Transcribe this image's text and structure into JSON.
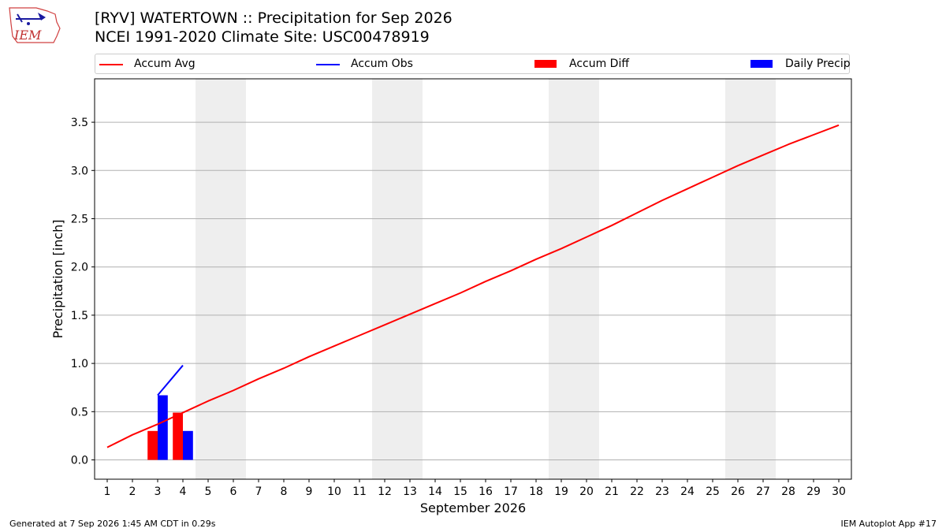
{
  "header": {
    "title_line1": "[RYV] WATERTOWN :: Precipitation for Sep 2026",
    "title_line2": "NCEI 1991-2020 Climate Site: USC00478919",
    "logo_text": "IEM"
  },
  "footer": {
    "left": "Generated at 7 Sep 2026 1:45 AM CDT in 0.29s",
    "right": "IEM Autoplot App #17"
  },
  "colors": {
    "avg": "#ff0000",
    "obs": "#0000ff",
    "diff": "#ff0000",
    "daily": "#0000ff",
    "weekend": "#eeeeee",
    "grid": "#b0b0b0"
  },
  "chart_data": {
    "type": "bar",
    "xlabel": "September 2026",
    "ylabel": "Precipitation [inch]",
    "xlim": [
      0.5,
      30.5
    ],
    "ylim": [
      -0.2,
      3.95
    ],
    "yticks": [
      0.0,
      0.5,
      1.0,
      1.5,
      2.0,
      2.5,
      3.0,
      3.5
    ],
    "ytick_labels": [
      "0.0",
      "0.5",
      "1.0",
      "1.5",
      "2.0",
      "2.5",
      "3.0",
      "3.5"
    ],
    "xticks": [
      1,
      2,
      3,
      4,
      5,
      6,
      7,
      8,
      9,
      10,
      11,
      12,
      13,
      14,
      15,
      16,
      17,
      18,
      19,
      20,
      21,
      22,
      23,
      24,
      25,
      26,
      27,
      28,
      29,
      30
    ],
    "xtick_labels": [
      "1",
      "2",
      "3",
      "4",
      "5",
      "6",
      "7",
      "8",
      "9",
      "10",
      "11",
      "12",
      "13",
      "14",
      "15",
      "16",
      "17",
      "18",
      "19",
      "20",
      "21",
      "22",
      "23",
      "24",
      "25",
      "26",
      "27",
      "28",
      "29",
      "30"
    ],
    "grid": "horizontal",
    "weekend_spans": [
      [
        4.5,
        6.5
      ],
      [
        11.5,
        13.5
      ],
      [
        18.5,
        20.5
      ],
      [
        25.5,
        27.5
      ]
    ],
    "legend": {
      "placement": "top",
      "entries": [
        {
          "label": "Accum Avg",
          "kind": "line",
          "color": "#ff0000"
        },
        {
          "label": "Accum Obs",
          "kind": "line",
          "color": "#0000ff"
        },
        {
          "label": "Accum Diff",
          "kind": "bar",
          "color": "#ff0000"
        },
        {
          "label": "Daily Precip",
          "kind": "bar",
          "color": "#0000ff"
        }
      ]
    },
    "series": [
      {
        "name": "Accum Avg",
        "type": "line",
        "color": "#ff0000",
        "x": [
          1,
          2,
          3,
          4,
          5,
          6,
          7,
          8,
          9,
          10,
          11,
          12,
          13,
          14,
          15,
          16,
          17,
          18,
          19,
          20,
          21,
          22,
          23,
          24,
          25,
          26,
          27,
          28,
          29,
          30
        ],
        "values": [
          0.13,
          0.26,
          0.37,
          0.49,
          0.61,
          0.72,
          0.84,
          0.95,
          1.07,
          1.18,
          1.29,
          1.4,
          1.51,
          1.62,
          1.73,
          1.85,
          1.96,
          2.08,
          2.19,
          2.31,
          2.43,
          2.56,
          2.69,
          2.81,
          2.93,
          3.05,
          3.16,
          3.27,
          3.37,
          3.47
        ]
      },
      {
        "name": "Accum Obs",
        "type": "line",
        "color": "#0000ff",
        "x": [
          3,
          4
        ],
        "values": [
          0.67,
          0.98
        ]
      },
      {
        "name": "Accum Diff",
        "type": "bar",
        "color": "#ff0000",
        "x": [
          3,
          4
        ],
        "values": [
          0.3,
          0.49
        ]
      },
      {
        "name": "Daily Precip",
        "type": "bar",
        "color": "#0000ff",
        "x": [
          3,
          4
        ],
        "values": [
          0.67,
          0.3
        ]
      }
    ]
  }
}
